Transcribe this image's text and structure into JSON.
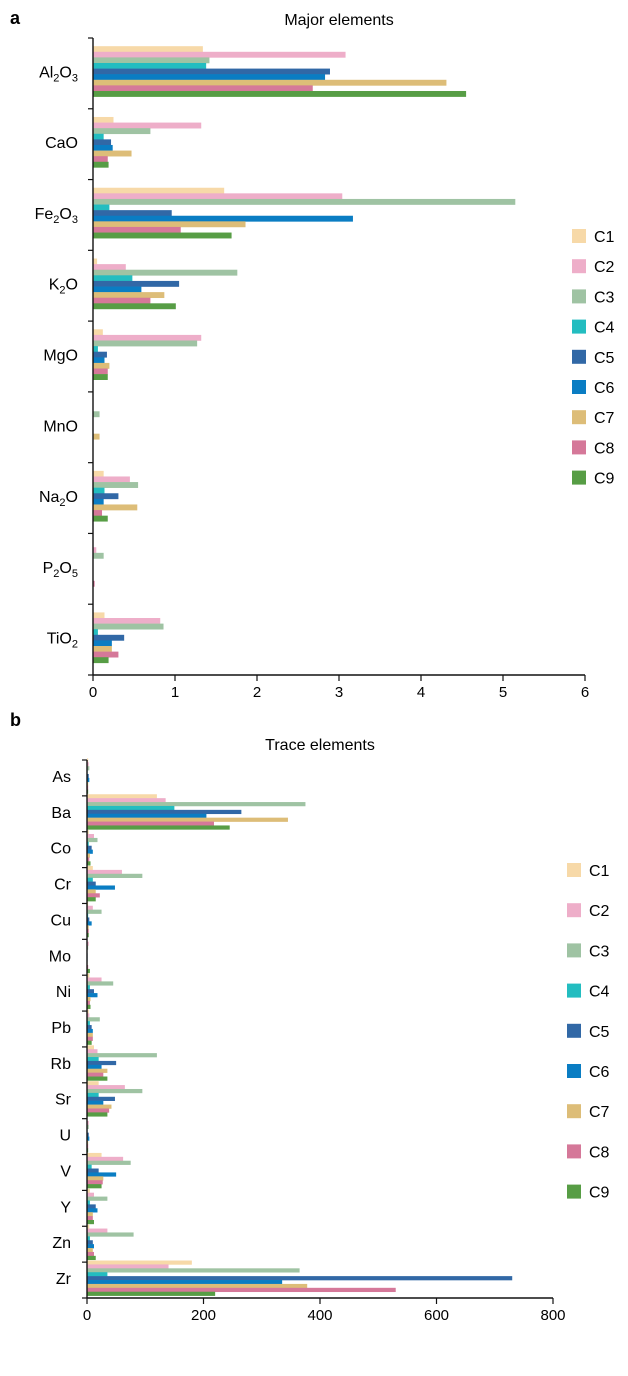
{
  "series_colors": [
    "#f7d9a8",
    "#eeaec9",
    "#9fc3a3",
    "#23bdc0",
    "#3168a6",
    "#0a7dc3",
    "#ddbd78",
    "#d57899",
    "#579d45"
  ],
  "chart_data": [
    {
      "type": "bar",
      "orientation": "horizontal",
      "panel_label": "a",
      "title": "Major elements",
      "categories": [
        "Al2O3",
        "CaO",
        "Fe2O3",
        "K2O",
        "MgO",
        "MnO",
        "Na2O",
        "P2O5",
        "TiO2"
      ],
      "category_labels": [
        {
          "base": "Al",
          "sub": "2",
          "tail": "O",
          "sub2": "3"
        },
        {
          "base": "CaO",
          "sub": "",
          "tail": "",
          "sub2": ""
        },
        {
          "base": "Fe",
          "sub": "2",
          "tail": "O",
          "sub2": "3"
        },
        {
          "base": "K",
          "sub": "2",
          "tail": "O",
          "sub2": ""
        },
        {
          "base": "MgO",
          "sub": "",
          "tail": "",
          "sub2": ""
        },
        {
          "base": "MnO",
          "sub": "",
          "tail": "",
          "sub2": ""
        },
        {
          "base": "Na",
          "sub": "2",
          "tail": "O",
          "sub2": ""
        },
        {
          "base": "P",
          "sub": "2",
          "tail": "O",
          "sub2": "5"
        },
        {
          "base": "TiO",
          "sub": "2",
          "tail": "",
          "sub2": ""
        }
      ],
      "xlim": [
        0,
        6
      ],
      "xticks": [
        "0",
        "1",
        "2",
        "3",
        "4",
        "5",
        "6"
      ],
      "series": [
        {
          "name": "C1",
          "values": [
            1.34,
            0.25,
            1.6,
            0.05,
            0.12,
            0.0,
            0.13,
            0.0,
            0.14
          ]
        },
        {
          "name": "C2",
          "values": [
            3.08,
            1.32,
            3.04,
            0.4,
            1.32,
            0.0,
            0.45,
            0.04,
            0.82
          ]
        },
        {
          "name": "C3",
          "values": [
            1.42,
            0.7,
            5.15,
            1.76,
            1.27,
            0.08,
            0.55,
            0.13,
            0.86
          ]
        },
        {
          "name": "C4",
          "values": [
            1.38,
            0.13,
            0.2,
            0.48,
            0.06,
            0.0,
            0.14,
            0.0,
            0.06
          ]
        },
        {
          "name": "C5",
          "values": [
            2.89,
            0.22,
            0.96,
            1.05,
            0.17,
            0.0,
            0.31,
            0.0,
            0.38
          ]
        },
        {
          "name": "C6",
          "values": [
            2.83,
            0.24,
            3.17,
            0.59,
            0.14,
            0.0,
            0.13,
            0.0,
            0.23
          ]
        },
        {
          "name": "C7",
          "values": [
            4.31,
            0.47,
            1.86,
            0.87,
            0.2,
            0.08,
            0.54,
            0.0,
            0.23
          ]
        },
        {
          "name": "C8",
          "values": [
            2.68,
            0.18,
            1.07,
            0.7,
            0.18,
            0.0,
            0.11,
            0.02,
            0.31
          ]
        },
        {
          "name": "C9",
          "values": [
            4.55,
            0.19,
            1.69,
            1.01,
            0.18,
            0.0,
            0.18,
            0.0,
            0.19
          ]
        }
      ],
      "legend": "right"
    },
    {
      "type": "bar",
      "orientation": "horizontal",
      "panel_label": "b",
      "title": "Trace elements",
      "categories": [
        "As",
        "Ba",
        "Co",
        "Cr",
        "Cu",
        "Mo",
        "Ni",
        "Pb",
        "Rb",
        "Sr",
        "U",
        "V",
        "Y",
        "Zn",
        "Zr"
      ],
      "category_labels": [
        {
          "base": "As",
          "sub": "",
          "tail": "",
          "sub2": ""
        },
        {
          "base": "Ba",
          "sub": "",
          "tail": "",
          "sub2": ""
        },
        {
          "base": "Co",
          "sub": "",
          "tail": "",
          "sub2": ""
        },
        {
          "base": "Cr",
          "sub": "",
          "tail": "",
          "sub2": ""
        },
        {
          "base": "Cu",
          "sub": "",
          "tail": "",
          "sub2": ""
        },
        {
          "base": "Mo",
          "sub": "",
          "tail": "",
          "sub2": ""
        },
        {
          "base": "Ni",
          "sub": "",
          "tail": "",
          "sub2": ""
        },
        {
          "base": "Pb",
          "sub": "",
          "tail": "",
          "sub2": ""
        },
        {
          "base": "Rb",
          "sub": "",
          "tail": "",
          "sub2": ""
        },
        {
          "base": "Sr",
          "sub": "",
          "tail": "",
          "sub2": ""
        },
        {
          "base": "U",
          "sub": "",
          "tail": "",
          "sub2": ""
        },
        {
          "base": "V",
          "sub": "",
          "tail": "",
          "sub2": ""
        },
        {
          "base": "Y",
          "sub": "",
          "tail": "",
          "sub2": ""
        },
        {
          "base": "Zn",
          "sub": "",
          "tail": "",
          "sub2": ""
        },
        {
          "base": "Zr",
          "sub": "",
          "tail": "",
          "sub2": ""
        }
      ],
      "xlim": [
        0,
        800
      ],
      "xticks": [
        "0",
        "200",
        "400",
        "600",
        "800"
      ],
      "series": [
        {
          "name": "C1",
          "values": [
            2,
            120,
            3,
            10,
            2,
            1,
            4,
            3,
            12,
            20,
            1,
            25,
            5,
            4,
            180
          ]
        },
        {
          "name": "C2",
          "values": [
            3,
            135,
            12,
            60,
            10,
            3,
            25,
            4,
            18,
            65,
            3,
            62,
            12,
            35,
            140
          ]
        },
        {
          "name": "C3",
          "values": [
            4,
            375,
            18,
            95,
            25,
            2,
            45,
            22,
            120,
            95,
            3,
            75,
            35,
            80,
            365
          ]
        },
        {
          "name": "C4",
          "values": [
            1,
            150,
            3,
            10,
            2,
            0,
            5,
            5,
            20,
            20,
            1,
            8,
            5,
            5,
            35
          ]
        },
        {
          "name": "C5",
          "values": [
            3,
            265,
            8,
            15,
            4,
            1,
            12,
            8,
            50,
            48,
            3,
            20,
            15,
            10,
            730
          ]
        },
        {
          "name": "C6",
          "values": [
            4,
            205,
            10,
            48,
            8,
            1,
            18,
            10,
            25,
            28,
            4,
            50,
            18,
            12,
            335
          ]
        },
        {
          "name": "C7",
          "values": [
            2,
            345,
            5,
            15,
            3,
            1,
            6,
            10,
            35,
            42,
            2,
            28,
            10,
            10,
            378
          ]
        },
        {
          "name": "C8",
          "values": [
            2,
            218,
            4,
            22,
            3,
            2,
            5,
            10,
            28,
            38,
            2,
            27,
            10,
            12,
            530
          ]
        },
        {
          "name": "C9",
          "values": [
            2,
            245,
            6,
            15,
            3,
            5,
            6,
            8,
            35,
            35,
            2,
            25,
            12,
            15,
            220
          ]
        }
      ],
      "legend": "right"
    }
  ]
}
